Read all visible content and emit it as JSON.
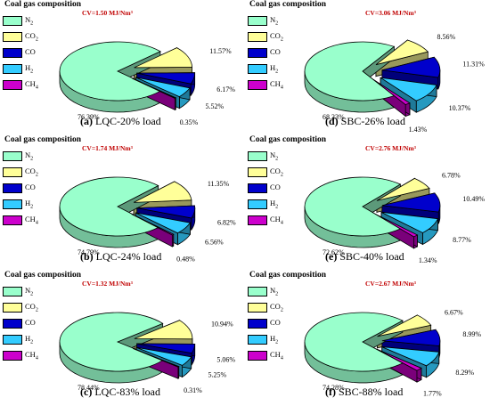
{
  "legend": {
    "title": "Coal gas composition",
    "entries": [
      {
        "label": "N",
        "sub": "2",
        "color": "#99ffcc"
      },
      {
        "label": "CO",
        "sub": "2",
        "color": "#ffff99"
      },
      {
        "label": "CO",
        "sub": "",
        "color": "#0000cc"
      },
      {
        "label": "H",
        "sub": "2",
        "color": "#33ccff"
      },
      {
        "label": "CH",
        "sub": "4",
        "color": "#cc00cc"
      }
    ]
  },
  "cv_unit_note": "MJ/Nm³",
  "chart_data": [
    {
      "type": "pie",
      "panel": "(a)",
      "title": "LQC-20% load",
      "cv": "CV=1.50 MJ/Nm³",
      "categories": [
        "N2",
        "CO2",
        "CO",
        "H2",
        "CH4"
      ],
      "values": [
        76.39,
        11.57,
        6.17,
        5.52,
        0.35
      ],
      "labels": [
        "76.39%",
        "11.57%",
        "6.17%",
        "5.52%",
        "0.35%"
      ]
    },
    {
      "type": "pie",
      "panel": "(d)",
      "title": "SBC-26% load",
      "cv": "CV=3.06 MJ/Nm³",
      "categories": [
        "N2",
        "CO2",
        "CO",
        "H2",
        "CH4"
      ],
      "values": [
        68.33,
        8.56,
        11.31,
        10.37,
        1.43
      ],
      "labels": [
        "68.33%",
        "8.56%",
        "11.31%",
        "10.37%",
        "1.43%"
      ]
    },
    {
      "type": "pie",
      "panel": "(b)",
      "title": "LQC-24% load",
      "cv": "CV=1.74 MJ/Nm³",
      "categories": [
        "N2",
        "CO2",
        "CO",
        "H2",
        "CH4"
      ],
      "values": [
        74.79,
        11.35,
        6.82,
        6.56,
        0.48
      ],
      "labels": [
        "74.79%",
        "11.35%",
        "6.82%",
        "6.56%",
        "0.48%"
      ]
    },
    {
      "type": "pie",
      "panel": "(e)",
      "title": "SBC-40% load",
      "cv": "CV=2.76 MJ/Nm³",
      "categories": [
        "N2",
        "CO2",
        "CO",
        "H2",
        "CH4"
      ],
      "values": [
        72.62,
        6.78,
        10.49,
        8.77,
        1.34
      ],
      "labels": [
        "72.62%",
        "6.78%",
        "10.49%",
        "8.77%",
        "1.34%"
      ]
    },
    {
      "type": "pie",
      "panel": "(c)",
      "title": "LQC-83% load",
      "cv": "CV=1.32 MJ/Nm³",
      "categories": [
        "N2",
        "CO2",
        "CO",
        "H2",
        "CH4"
      ],
      "values": [
        78.44,
        10.94,
        5.06,
        5.25,
        0.31
      ],
      "labels": [
        "78.44%",
        "10.94%",
        "5.06%",
        "5.25%",
        "0.31%"
      ]
    },
    {
      "type": "pie",
      "panel": "(f)",
      "title": "SBC-88% load",
      "cv": "CV=2.67 MJ/Nm³",
      "categories": [
        "N2",
        "CO2",
        "CO",
        "H2",
        "CH4"
      ],
      "values": [
        74.28,
        6.67,
        8.99,
        8.29,
        1.77
      ],
      "labels": [
        "74.28%",
        "6.67%",
        "8.99%",
        "8.29%",
        "1.77%"
      ]
    }
  ]
}
